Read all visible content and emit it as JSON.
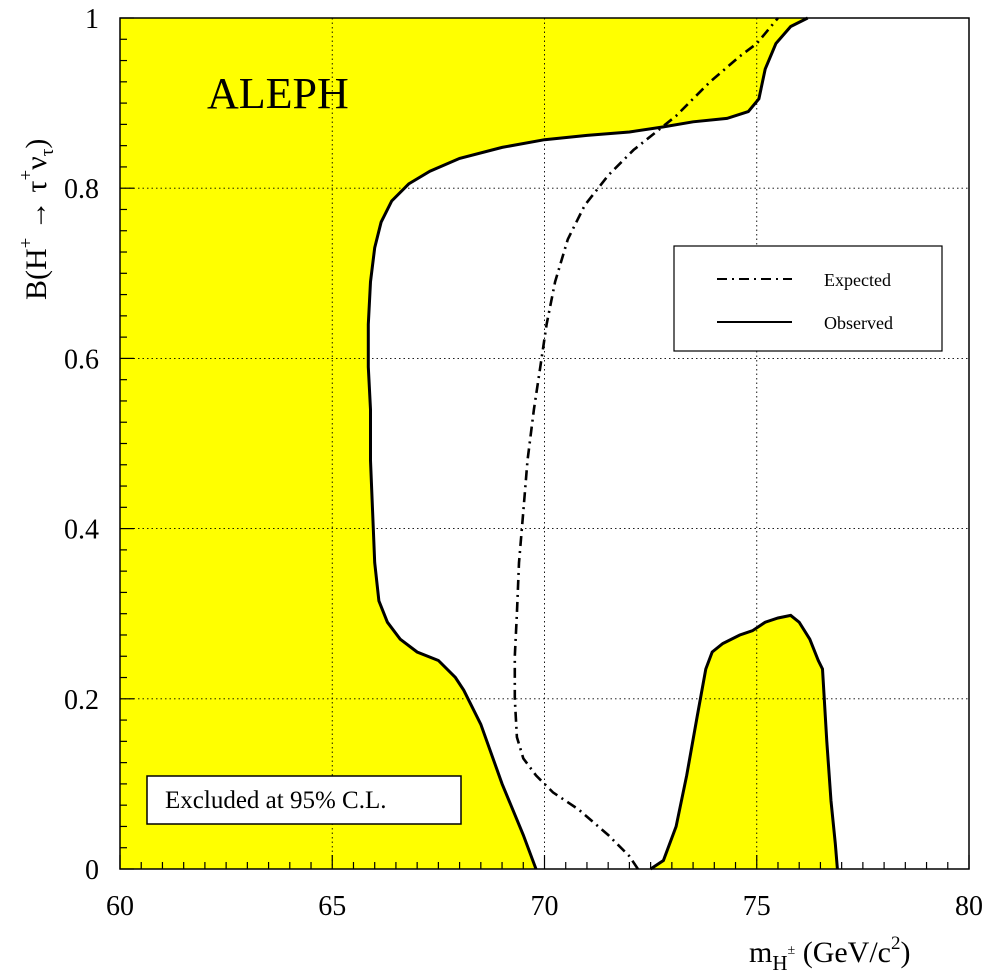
{
  "chart_data": {
    "type": "area",
    "title": "",
    "annotation": "ALEPH",
    "excluded_label": "Excluded at 95% C.L.",
    "xlabel": "m_{H^±} (GeV/c^2)",
    "ylabel": "B(H^+ → τ^+ν_τ)",
    "xlim": [
      60,
      80
    ],
    "ylim": [
      0,
      1
    ],
    "xticks": [
      60,
      65,
      70,
      75,
      80
    ],
    "yticks": [
      0,
      0.2,
      0.4,
      0.6,
      0.8,
      1
    ],
    "xtick_labels": [
      "60",
      "65",
      "70",
      "75",
      "80"
    ],
    "ytick_labels": [
      "0",
      "0.2",
      "0.4",
      "0.6",
      "0.8",
      "1"
    ],
    "grid": true,
    "legend_position": "right-middle",
    "excluded_color": "#ffff00",
    "series": [
      {
        "name": "Expected",
        "style": "dash-dot",
        "x": [
          72.2,
          72.0,
          71.5,
          70.8,
          70.2,
          69.8,
          69.5,
          69.35,
          69.3,
          69.3,
          69.35,
          69.4,
          69.5,
          69.6,
          69.75,
          69.9,
          70.05,
          70.25,
          70.55,
          70.95,
          71.5,
          72.1,
          72.6,
          73.1,
          73.5,
          73.9,
          74.25,
          74.6,
          75.0,
          75.5
        ],
        "y": [
          0.0,
          0.015,
          0.04,
          0.07,
          0.09,
          0.11,
          0.13,
          0.155,
          0.2,
          0.25,
          0.3,
          0.36,
          0.42,
          0.48,
          0.54,
          0.59,
          0.64,
          0.69,
          0.74,
          0.78,
          0.815,
          0.845,
          0.865,
          0.885,
          0.905,
          0.925,
          0.94,
          0.955,
          0.97,
          1.0
        ]
      },
      {
        "name": "Observed",
        "style": "solid",
        "x": [
          69.8,
          69.5,
          69.0,
          68.5,
          68.1,
          67.9,
          67.5,
          67.0,
          66.6,
          66.3,
          66.1,
          66.0,
          65.95,
          65.9,
          65.9,
          65.85,
          65.85,
          65.9,
          66.0,
          66.15,
          66.4,
          66.8,
          67.3,
          68.0,
          69.0,
          70.0,
          71.0,
          72.0,
          72.8,
          73.5,
          74.3,
          74.8,
          75.05,
          75.2,
          75.45,
          75.8,
          76.2
        ],
        "y": [
          0.0,
          0.04,
          0.1,
          0.17,
          0.21,
          0.225,
          0.245,
          0.255,
          0.27,
          0.29,
          0.315,
          0.36,
          0.42,
          0.48,
          0.54,
          0.59,
          0.64,
          0.69,
          0.73,
          0.76,
          0.785,
          0.805,
          0.82,
          0.835,
          0.848,
          0.857,
          0.862,
          0.866,
          0.872,
          0.878,
          0.882,
          0.89,
          0.905,
          0.94,
          0.97,
          0.99,
          1.0
        ]
      },
      {
        "name": "",
        "style": "solid",
        "x": [
          72.5,
          72.8,
          73.1,
          73.35,
          73.6,
          73.8,
          73.95,
          74.2,
          74.6,
          74.9,
          75.2,
          75.5,
          75.8,
          76.0,
          76.25,
          76.45,
          76.55,
          76.65,
          76.75,
          76.85,
          76.9
        ],
        "y": [
          0.0,
          0.01,
          0.05,
          0.11,
          0.18,
          0.235,
          0.255,
          0.265,
          0.275,
          0.28,
          0.29,
          0.295,
          0.298,
          0.29,
          0.27,
          0.245,
          0.235,
          0.15,
          0.08,
          0.03,
          0.0
        ]
      }
    ]
  }
}
